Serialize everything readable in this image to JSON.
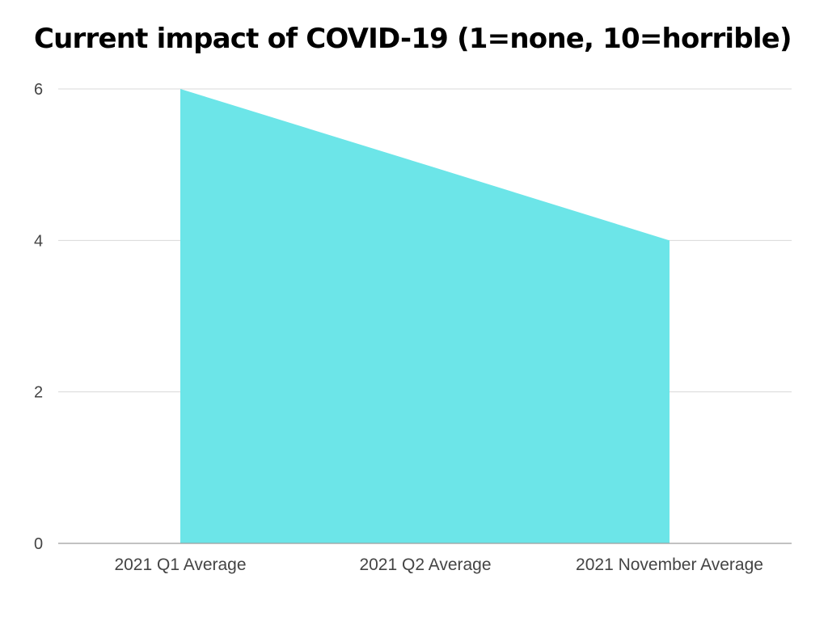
{
  "chart_data": {
    "type": "area",
    "title": "Current impact of COVID-19 (1=none, 10=horrible)",
    "categories": [
      "2021 Q1 Average",
      "2021 Q2 Average",
      "2021 November Average"
    ],
    "series": [
      {
        "values": [
          6,
          5,
          4
        ],
        "color": "#6ce5e8"
      }
    ],
    "xlabel": "",
    "ylabel": "",
    "ylim": [
      0,
      6
    ],
    "yticks": [
      0,
      2,
      4,
      6
    ],
    "grid": true,
    "legend": "none"
  }
}
